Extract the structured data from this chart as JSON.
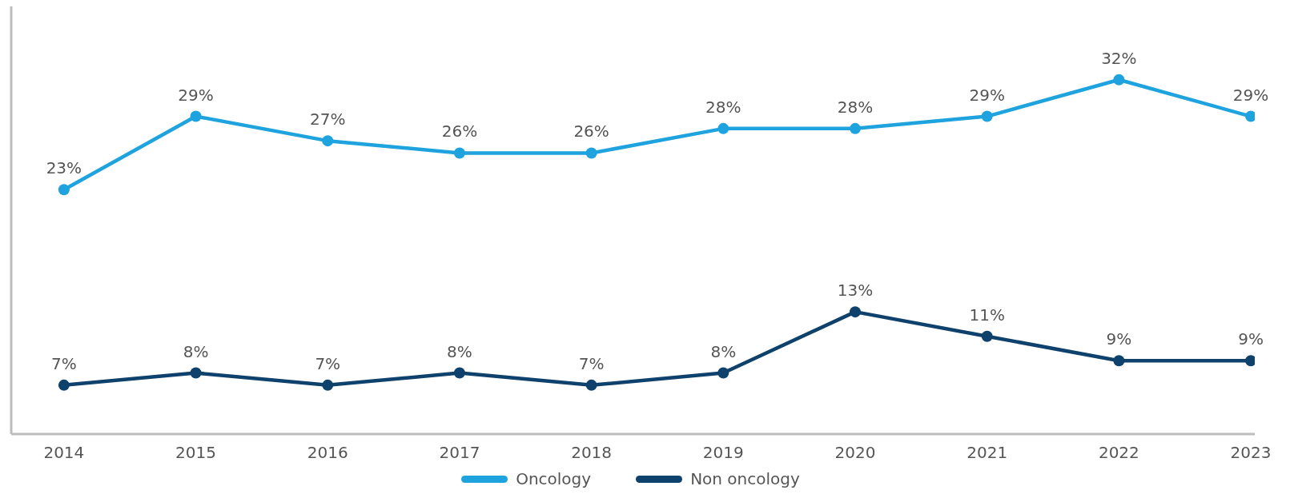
{
  "chart_data": {
    "type": "line",
    "categories": [
      "2014",
      "2015",
      "2016",
      "2017",
      "2018",
      "2019",
      "2020",
      "2021",
      "2022",
      "2023"
    ],
    "series": [
      {
        "name": "Oncology",
        "color": "#1fa3df",
        "values": [
          23,
          29,
          27,
          26,
          26,
          28,
          28,
          29,
          32,
          29
        ],
        "value_labels": [
          "23%",
          "29%",
          "27%",
          "26%",
          "26%",
          "28%",
          "28%",
          "29%",
          "32%",
          "29%"
        ]
      },
      {
        "name": "Non oncology",
        "color": "#0e416c",
        "values": [
          7,
          8,
          7,
          8,
          7,
          8,
          13,
          11,
          9,
          9
        ],
        "value_labels": [
          "7%",
          "8%",
          "7%",
          "8%",
          "7%",
          "8%",
          "13%",
          "11%",
          "9%",
          "9%"
        ]
      }
    ],
    "ylim": [
      3,
      38
    ],
    "tick_labels": "x",
    "legend": "bottom",
    "marker": "circle",
    "line_style": "solid",
    "grid": false
  }
}
